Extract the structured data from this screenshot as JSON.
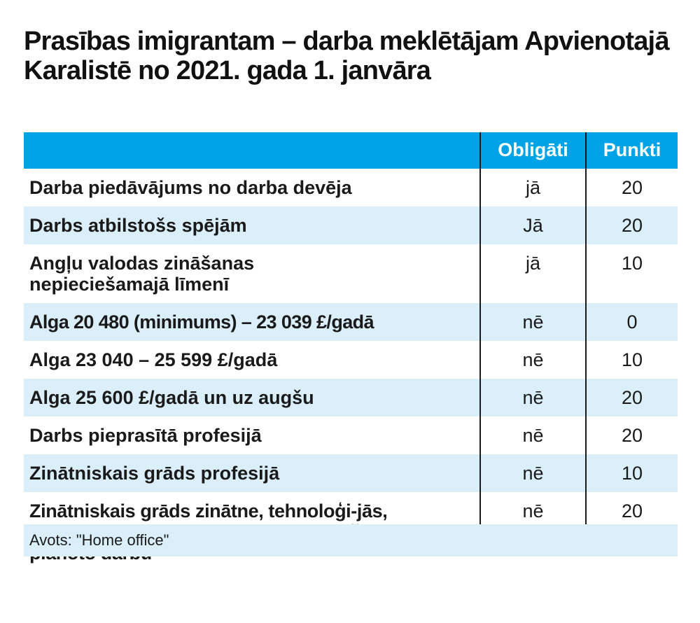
{
  "title": "Prasības imigrantam – darba meklētājam Apvienotajā Karalistē no 2021. gada 1. janvāra",
  "table": {
    "headers": [
      "",
      "Obligāti",
      "Punkti"
    ],
    "rows": [
      {
        "label": "Darba piedāvājums no darba devēja",
        "required": "jā",
        "points": "20"
      },
      {
        "label": "Darbs atbilstošs spējām",
        "required": "Jā",
        "points": "20"
      },
      {
        "label": "Angļu valodas zināšanas nepieciešamajā līmenī",
        "required": "jā",
        "points": "10"
      },
      {
        "label": "Alga 20 480 (minimums) – 23 039 £/gadā",
        "required": "nē",
        "points": "0"
      },
      {
        "label": "Alga 23 040 – 25 599 £/gadā",
        "required": "nē",
        "points": "10"
      },
      {
        "label": "Alga 25 600 £/gadā un uz augšu",
        "required": "nē",
        "points": "20"
      },
      {
        "label": "Darbs pieprasītā profesijā",
        "required": "nē",
        "points": "20"
      },
      {
        "label": "Zinātniskais grāds profesijā",
        "required": "nē",
        "points": "10"
      },
      {
        "label": "Zinātniskais grāds zinātne, tehnoloģi-jās, inženierzinātnes, matemātikā, kas tieši attiecas uz plānoto darbu",
        "required": "nē",
        "points": "20"
      }
    ]
  },
  "source": "Avots: \"Home office\"",
  "colors": {
    "header": "#00a3e6",
    "stripe": "#dbeffa",
    "text": "#1a1a1a"
  }
}
